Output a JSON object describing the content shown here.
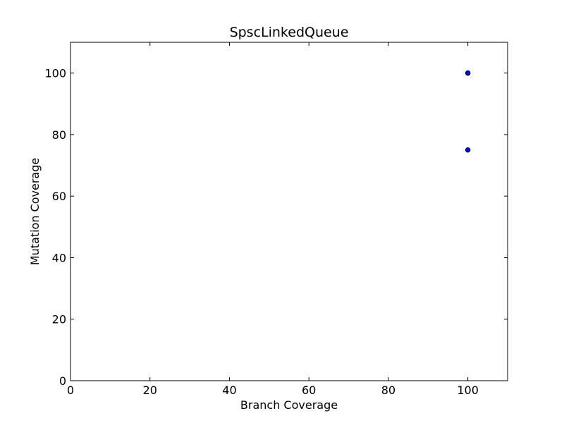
{
  "chart_data": {
    "type": "scatter",
    "title": "SpscLinkedQueue",
    "xlabel": "Branch Coverage",
    "ylabel": "Mutation Coverage",
    "xlim": [
      0,
      110
    ],
    "ylim": [
      0,
      110
    ],
    "xticks": [
      0,
      20,
      40,
      60,
      80,
      100
    ],
    "yticks": [
      0,
      20,
      40,
      60,
      80,
      100
    ],
    "grid": false,
    "series": [
      {
        "color": "#0000ff",
        "points": [
          {
            "x": 100,
            "y": 100
          },
          {
            "x": 100,
            "y": 100
          },
          {
            "x": 100,
            "y": 75
          }
        ]
      }
    ]
  }
}
